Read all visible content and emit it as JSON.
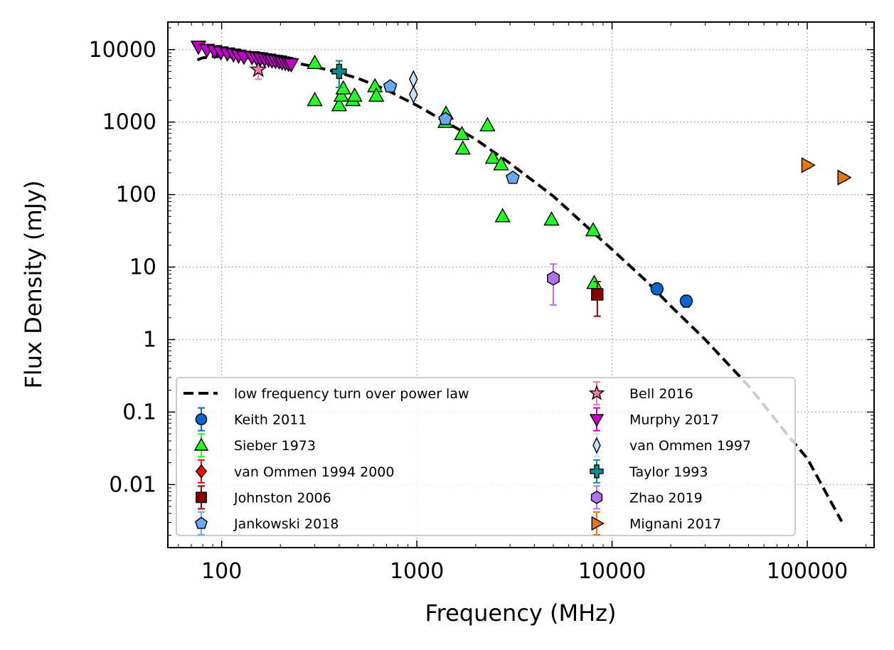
{
  "chart_data": {
    "type": "scatter",
    "xlabel": "Frequency (MHz)",
    "ylabel": "Flux Density (mJy)",
    "xscale": "log",
    "yscale": "log",
    "xlim": [
      53,
      220000
    ],
    "ylim": [
      0.00135,
      24000
    ],
    "xticks": [
      100,
      1000,
      10000,
      100000
    ],
    "xtick_labels": [
      "100",
      "1000",
      "10000",
      "100000"
    ],
    "yticks": [
      0.01,
      0.1,
      1,
      10,
      100,
      1000,
      10000
    ],
    "ytick_labels": [
      "0.01",
      "0.1",
      "1",
      "10",
      "100",
      "1000",
      "10000"
    ],
    "grid": true,
    "legend_position": "lower-left",
    "fit": {
      "name": "low frequency turn over power law",
      "color": "#000000",
      "x": [
        75,
        80,
        90,
        100,
        120,
        150,
        200,
        250,
        300,
        400,
        500,
        600,
        700,
        800,
        1000,
        1500,
        2000,
        3000,
        5000,
        8000,
        10000,
        15000,
        20000,
        30000,
        50000,
        80000,
        100000,
        150000
      ],
      "y": [
        7200,
        7700,
        8000,
        8000,
        7900,
        7600,
        7000,
        6400,
        5800,
        4800,
        4000,
        3300,
        2800,
        2300,
        1700,
        910,
        580,
        270,
        95,
        30,
        17.5,
        6.4,
        2.9,
        1.0,
        0.23,
        0.047,
        0.023,
        0.0031
      ]
    },
    "series": [
      {
        "name": "Keith 2011",
        "marker": "circle",
        "color": "#0a64d2",
        "x": [
          17000,
          24000
        ],
        "y": [
          5.0,
          3.4
        ],
        "err": [
          0.7,
          0.6
        ]
      },
      {
        "name": "Sieber 1973",
        "marker": "triangle-up",
        "color": "#22ff22",
        "x": [
          300,
          300,
          400,
          410,
          420,
          470,
          480,
          610,
          620,
          1400,
          1410,
          1700,
          1720,
          2300,
          2450,
          2700,
          2750,
          4900,
          8000,
          8100
        ],
        "y": [
          6500,
          2000,
          1700,
          2300,
          2900,
          2000,
          2300,
          3100,
          2300,
          1000,
          1300,
          680,
          430,
          900,
          320,
          260,
          50,
          45,
          32,
          6.0
        ],
        "err": [
          0,
          0,
          0,
          0,
          0,
          0,
          0,
          0,
          0,
          0,
          0,
          0,
          0,
          0,
          0,
          0,
          0,
          0,
          0,
          0
        ]
      },
      {
        "name": "van Ommen 1994 2000",
        "marker": "diamond",
        "color": "#ff0000",
        "x": [],
        "y": [],
        "err": []
      },
      {
        "name": "Johnston 2006",
        "marker": "square",
        "color": "#8b0000",
        "x": [
          8400
        ],
        "y": [
          4.2
        ],
        "err": [
          2.1
        ]
      },
      {
        "name": "Jankowski 2018",
        "marker": "pentagon",
        "color": "#6aa9f2",
        "x": [
          730,
          1400,
          3100
        ],
        "y": [
          3100,
          1100,
          170
        ],
        "err": [
          0,
          0,
          0
        ]
      },
      {
        "name": "Bell 2016",
        "marker": "star",
        "color": "#ff77aa",
        "x": [
          154
        ],
        "y": [
          5300
        ],
        "err": [
          1400
        ]
      },
      {
        "name": "Murphy 2017",
        "marker": "triangle-down",
        "color": "#c000c8",
        "x": [
          76,
          84,
          92,
          99,
          107,
          115,
          122,
          130,
          143,
          151,
          158,
          166,
          174,
          181,
          189,
          197,
          204,
          212,
          220,
          227
        ],
        "y": [
          11000,
          10000,
          9600,
          9200,
          8900,
          8600,
          8300,
          8000,
          7900,
          7700,
          7600,
          7400,
          7300,
          7100,
          7000,
          6900,
          6700,
          6600,
          6400,
          6300
        ],
        "err": [
          0,
          0,
          0,
          0,
          0,
          0,
          0,
          0,
          0,
          0,
          0,
          0,
          0,
          0,
          0,
          0,
          0,
          0,
          0,
          0
        ]
      },
      {
        "name": "van Ommen 1997",
        "marker": "thin-diamond",
        "color": "#c8e0ff",
        "x": [
          960,
          960
        ],
        "y": [
          3900,
          2400
        ],
        "err": [
          0,
          0
        ]
      },
      {
        "name": "Taylor 1993",
        "marker": "plus",
        "color": "#0a8c8c",
        "x": [
          400
        ],
        "y": [
          5000
        ],
        "err": [
          2000
        ]
      },
      {
        "name": "Zhao 2019",
        "marker": "hexagon",
        "color": "#b070f0",
        "x": [
          5000
        ],
        "y": [
          7.0
        ],
        "err": [
          4.0
        ]
      },
      {
        "name": "Mignani 2017",
        "marker": "triangle-right",
        "color": "#e6780f",
        "x": [
          100000,
          153000
        ],
        "y": [
          255,
          172
        ],
        "err": [
          25,
          18
        ]
      }
    ]
  }
}
